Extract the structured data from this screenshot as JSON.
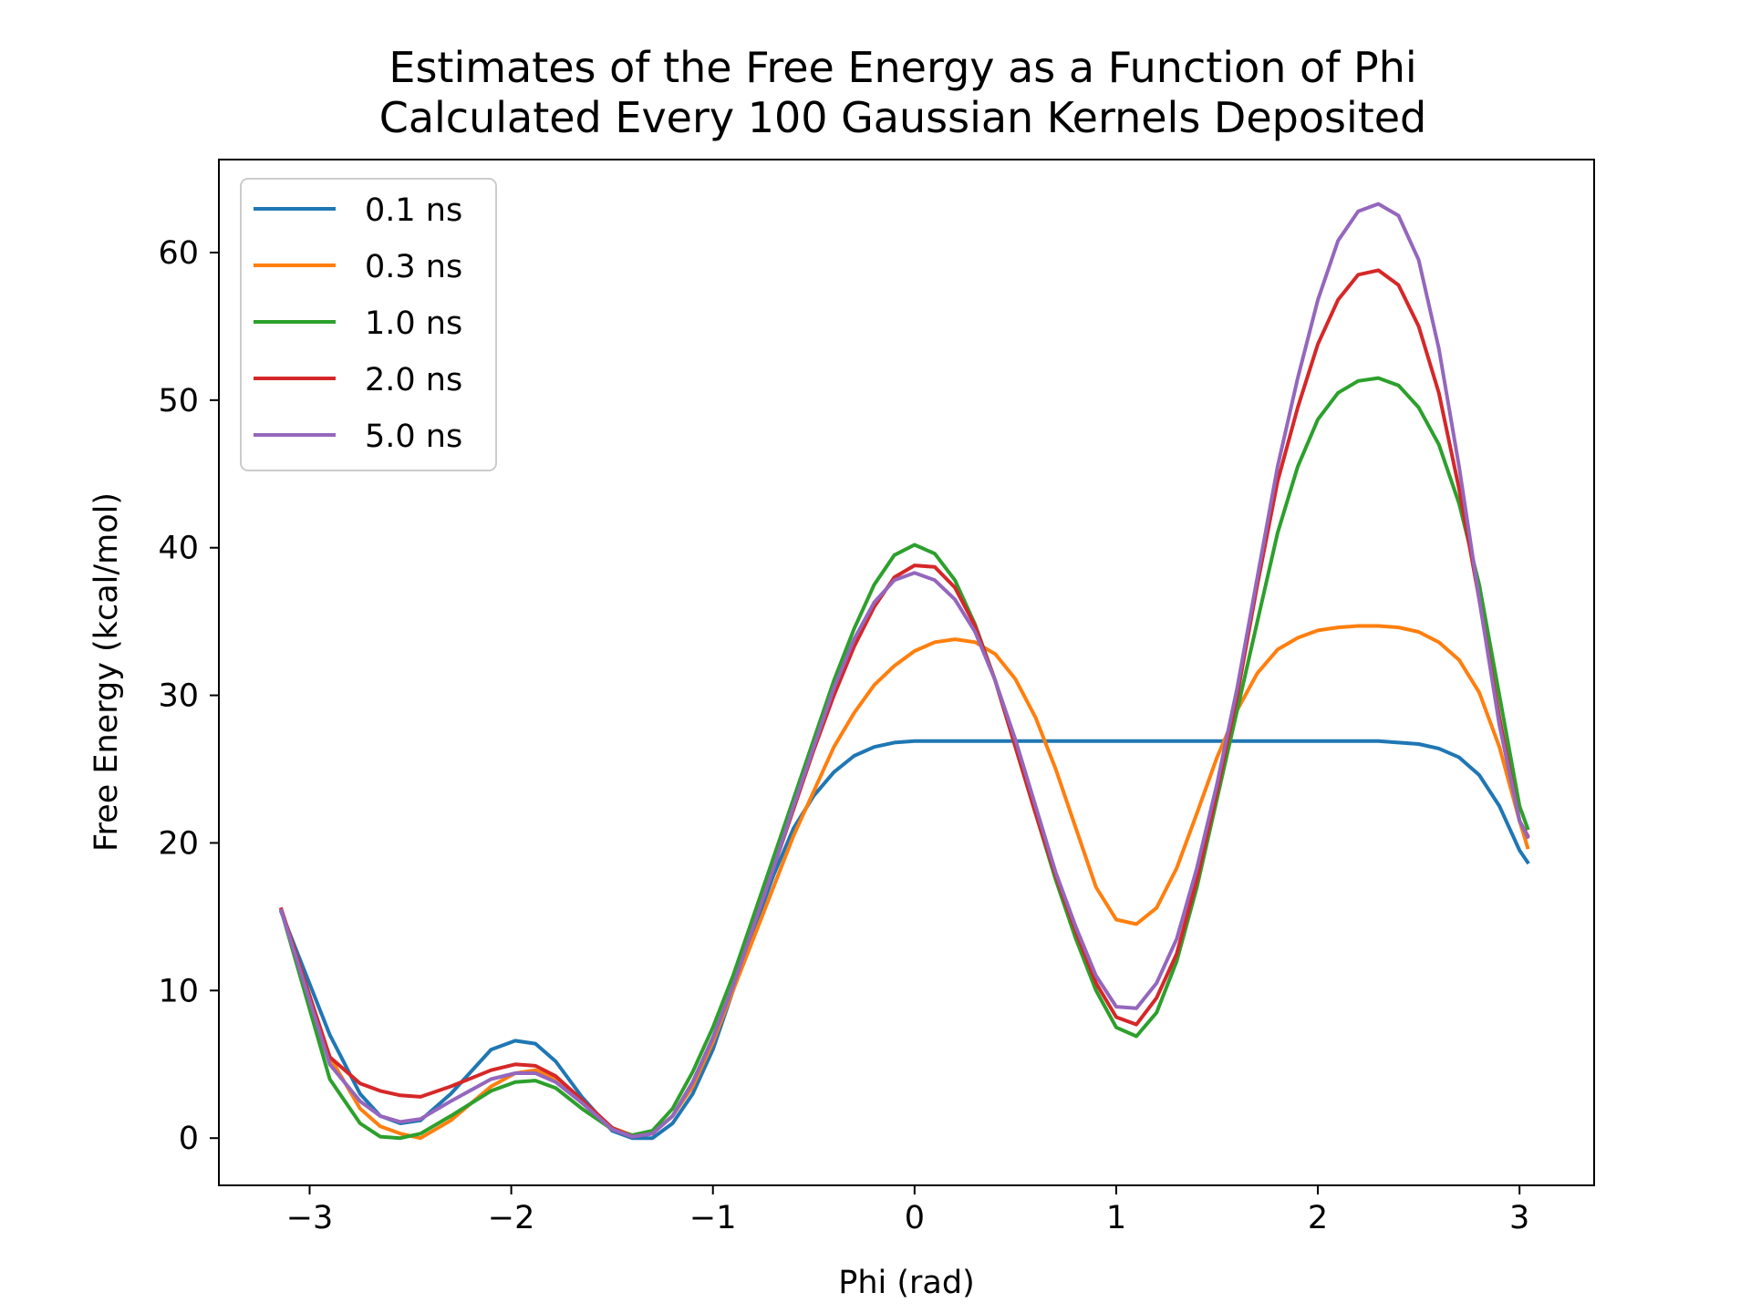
{
  "chart_data": {
    "type": "line",
    "title_line1": "Estimates of the Free Energy as a Function of Phi",
    "title_line2": "Calculated Every 100 Gaussian Kernels Deposited",
    "xlabel": "Phi (rad)",
    "ylabel": "Free Energy (kcal/mol)",
    "xlim": [
      -3.45,
      3.37
    ],
    "ylim": [
      -3.2,
      66.3
    ],
    "xticks": [
      -3,
      -2,
      -1,
      0,
      1,
      2,
      3
    ],
    "xtick_labels": [
      "−3",
      "−2",
      "−1",
      "0",
      "1",
      "2",
      "3"
    ],
    "yticks": [
      0,
      10,
      20,
      30,
      40,
      50,
      60
    ],
    "ytick_labels": [
      "0",
      "10",
      "20",
      "30",
      "40",
      "50",
      "60"
    ],
    "grid": false,
    "legend_position": "upper-left",
    "x": [
      -3.14,
      -2.9,
      -2.75,
      -2.65,
      -2.55,
      -2.45,
      -2.3,
      -2.1,
      -1.98,
      -1.88,
      -1.78,
      -1.65,
      -1.5,
      -1.4,
      -1.3,
      -1.2,
      -1.1,
      -1.0,
      -0.9,
      -0.8,
      -0.7,
      -0.6,
      -0.5,
      -0.4,
      -0.3,
      -0.2,
      -0.1,
      0.0,
      0.1,
      0.2,
      0.3,
      0.4,
      0.5,
      0.6,
      0.7,
      0.8,
      0.9,
      1.0,
      1.1,
      1.2,
      1.3,
      1.4,
      1.5,
      1.6,
      1.7,
      1.8,
      1.9,
      2.0,
      2.1,
      2.2,
      2.3,
      2.4,
      2.5,
      2.6,
      2.7,
      2.8,
      2.9,
      3.0,
      3.04
    ],
    "series": [
      {
        "name": "0.1 ns",
        "color": "#1f77b4",
        "values": [
          15.3,
          7.0,
          3.0,
          1.5,
          1.0,
          1.2,
          3.0,
          6.0,
          6.6,
          6.4,
          5.2,
          2.8,
          0.5,
          0.0,
          0.0,
          1.0,
          3.0,
          6.0,
          10.0,
          14.0,
          17.8,
          21.0,
          23.2,
          24.8,
          25.9,
          26.5,
          26.8,
          26.9,
          26.9,
          26.9,
          26.9,
          26.9,
          26.9,
          26.9,
          26.9,
          26.9,
          26.9,
          26.9,
          26.9,
          26.9,
          26.9,
          26.9,
          26.9,
          26.9,
          26.9,
          26.9,
          26.9,
          26.9,
          26.9,
          26.9,
          26.9,
          26.8,
          26.7,
          26.4,
          25.8,
          24.6,
          22.5,
          19.5,
          18.7
        ]
      },
      {
        "name": "0.3 ns",
        "color": "#ff7f0e",
        "values": [
          15.4,
          5.5,
          2.0,
          0.8,
          0.3,
          0.0,
          1.2,
          3.5,
          4.4,
          4.6,
          4.0,
          2.4,
          0.7,
          0.2,
          0.3,
          1.5,
          3.5,
          6.5,
          10.0,
          13.5,
          17.0,
          20.5,
          23.5,
          26.5,
          28.8,
          30.7,
          32.0,
          33.0,
          33.6,
          33.8,
          33.6,
          32.8,
          31.1,
          28.5,
          25.0,
          21.0,
          17.0,
          14.8,
          14.5,
          15.6,
          18.3,
          22.0,
          25.8,
          29.0,
          31.5,
          33.1,
          33.9,
          34.4,
          34.6,
          34.7,
          34.7,
          34.6,
          34.3,
          33.6,
          32.4,
          30.2,
          26.5,
          21.5,
          19.7
        ]
      },
      {
        "name": "1.0 ns",
        "color": "#2ca02c",
        "values": [
          15.4,
          4.0,
          1.0,
          0.1,
          0.0,
          0.3,
          1.5,
          3.2,
          3.8,
          3.9,
          3.4,
          2.0,
          0.6,
          0.2,
          0.5,
          2.0,
          4.5,
          7.5,
          11.0,
          15.0,
          19.0,
          23.0,
          27.0,
          31.0,
          34.5,
          37.5,
          39.5,
          40.2,
          39.6,
          37.8,
          34.8,
          31.0,
          26.5,
          22.0,
          17.5,
          13.5,
          10.0,
          7.5,
          6.9,
          8.5,
          12.0,
          17.0,
          23.0,
          29.0,
          35.0,
          41.0,
          45.5,
          48.7,
          50.5,
          51.3,
          51.5,
          51.0,
          49.5,
          47.0,
          43.0,
          37.5,
          30.0,
          22.5,
          21.0
        ]
      },
      {
        "name": "2.0 ns",
        "color": "#d62728",
        "values": [
          15.5,
          5.5,
          3.7,
          3.2,
          2.9,
          2.8,
          3.5,
          4.6,
          5.0,
          4.9,
          4.2,
          2.6,
          0.7,
          0.1,
          0.3,
          1.5,
          3.8,
          6.8,
          10.3,
          14.3,
          18.3,
          22.3,
          26.3,
          30.0,
          33.3,
          36.0,
          38.0,
          38.8,
          38.7,
          37.3,
          34.7,
          31.0,
          26.5,
          22.0,
          17.8,
          14.0,
          10.5,
          8.2,
          7.7,
          9.5,
          12.5,
          17.5,
          23.5,
          30.0,
          37.5,
          44.5,
          49.5,
          53.8,
          56.8,
          58.5,
          58.8,
          57.8,
          55.0,
          50.5,
          44.0,
          36.5,
          28.5,
          21.5,
          20.5
        ]
      },
      {
        "name": "5.0 ns",
        "color": "#9467bd",
        "values": [
          15.4,
          5.0,
          2.5,
          1.5,
          1.1,
          1.3,
          2.5,
          4.0,
          4.4,
          4.4,
          3.8,
          2.4,
          0.6,
          0.1,
          0.3,
          1.5,
          3.8,
          6.8,
          10.3,
          14.3,
          18.3,
          22.5,
          26.5,
          30.5,
          33.8,
          36.3,
          37.8,
          38.3,
          37.8,
          36.5,
          34.3,
          31.0,
          27.0,
          22.5,
          18.0,
          14.3,
          11.0,
          8.9,
          8.8,
          10.5,
          13.5,
          18.3,
          24.0,
          30.5,
          38.0,
          45.5,
          51.5,
          56.8,
          60.8,
          62.8,
          63.3,
          62.5,
          59.5,
          53.5,
          45.5,
          36.5,
          28.0,
          21.5,
          20.4
        ]
      }
    ]
  }
}
